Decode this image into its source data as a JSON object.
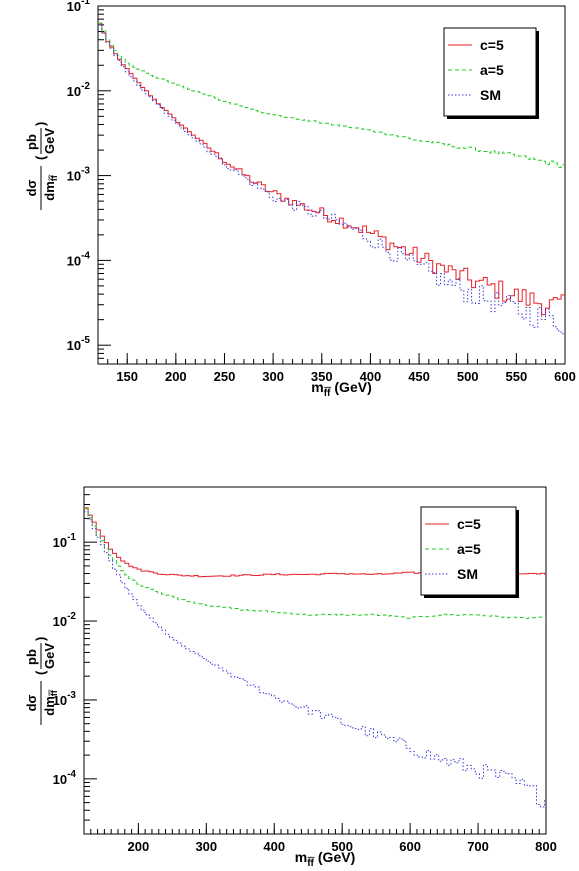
{
  "chart_data": [
    {
      "type": "line",
      "xlabel": "m_{f̃f̃} (GeV)",
      "xlabel_main": "m",
      "xlabel_sub": "f̃f̃",
      "xlabel_unit": "(GeV)",
      "ylabel": "dσ/dm_{f̃f̃} (pb/GeV)",
      "yscale": "log",
      "xlim": [
        120,
        600
      ],
      "ylim": [
        6e-06,
        0.1
      ],
      "xticks": [
        "150",
        "200",
        "250",
        "300",
        "350",
        "400",
        "450",
        "500",
        "550",
        "600"
      ],
      "yticks": [
        {
          "base": "10",
          "exp": "-1",
          "value": 0.1
        },
        {
          "base": "10",
          "exp": "-2",
          "value": 0.01
        },
        {
          "base": "10",
          "exp": "-3",
          "value": 0.001
        },
        {
          "base": "10",
          "exp": "-4",
          "value": 0.0001
        },
        {
          "base": "10",
          "exp": "-5",
          "value": 1e-05
        }
      ],
      "legend_position": "top-right",
      "series": [
        {
          "name": "c=5",
          "color": "#e8202a",
          "style": "solid",
          "x": [
            120,
            130,
            140,
            150,
            160,
            180,
            200,
            220,
            250,
            280,
            300,
            330,
            350,
            380,
            400,
            420,
            450,
            480,
            500,
            520,
            550,
            580,
            600
          ],
          "values": [
            0.07,
            0.038,
            0.025,
            0.018,
            0.013,
            0.0075,
            0.0045,
            0.0029,
            0.0015,
            0.00085,
            0.00062,
            0.00044,
            0.00036,
            0.00027,
            0.00021,
            0.00016,
            0.00011,
            7.5e-05,
            6e-05,
            5e-05,
            3.8e-05,
            3.1e-05,
            2.8e-05
          ]
        },
        {
          "name": "a=5",
          "color": "#22cc22",
          "style": "dashed",
          "x": [
            120,
            130,
            140,
            150,
            170,
            200,
            250,
            300,
            350,
            400,
            450,
            500,
            550,
            600
          ],
          "values": [
            0.07,
            0.04,
            0.028,
            0.021,
            0.016,
            0.012,
            0.0075,
            0.0052,
            0.0042,
            0.0034,
            0.0026,
            0.0021,
            0.0017,
            0.0013
          ]
        },
        {
          "name": "SM",
          "color": "#3a3ad8",
          "style": "dotted",
          "x": [
            120,
            130,
            140,
            150,
            160,
            180,
            200,
            220,
            250,
            280,
            300,
            330,
            350,
            380,
            400,
            420,
            450,
            480,
            500,
            520,
            550,
            580,
            600
          ],
          "values": [
            0.068,
            0.037,
            0.024,
            0.017,
            0.012,
            0.0072,
            0.0042,
            0.0027,
            0.0014,
            0.0008,
            0.00056,
            0.00041,
            0.00034,
            0.00024,
            0.00018,
            0.00013,
            8e-05,
            5.5e-05,
            4.2e-05,
            3.5e-05,
            2.6e-05,
            2.1e-05,
            1.8e-05
          ]
        }
      ]
    },
    {
      "type": "line",
      "xlabel": "m_{f̃f̃} (GeV)",
      "xlabel_main": "m",
      "xlabel_sub": "f̃f̃",
      "xlabel_unit": "(GeV)",
      "ylabel": "dσ/dm_{f̃f̃} (pb/GeV)",
      "yscale": "log",
      "xlim": [
        120,
        800
      ],
      "ylim": [
        2e-05,
        0.5
      ],
      "xticks": [
        "200",
        "300",
        "400",
        "500",
        "600",
        "700",
        "800"
      ],
      "yticks": [
        {
          "base": "10",
          "exp": "-1",
          "value": 0.1
        },
        {
          "base": "10",
          "exp": "-2",
          "value": 0.01
        },
        {
          "base": "10",
          "exp": "-3",
          "value": 0.001
        },
        {
          "base": "10",
          "exp": "-4",
          "value": 0.0001
        }
      ],
      "legend_position": "top-right",
      "series": [
        {
          "name": "c=5",
          "color": "#e8202a",
          "style": "solid",
          "x": [
            120,
            140,
            160,
            180,
            200,
            230,
            260,
            300,
            350,
            400,
            450,
            500,
            550,
            600,
            650,
            700,
            750,
            800
          ],
          "values": [
            0.3,
            0.15,
            0.08,
            0.055,
            0.045,
            0.04,
            0.038,
            0.037,
            0.038,
            0.039,
            0.039,
            0.04,
            0.039,
            0.041,
            0.04,
            0.04,
            0.039,
            0.04
          ]
        },
        {
          "name": "a=5",
          "color": "#22cc22",
          "style": "dashed",
          "x": [
            120,
            140,
            160,
            180,
            200,
            230,
            260,
            300,
            350,
            400,
            450,
            500,
            550,
            600,
            650,
            700,
            750,
            800
          ],
          "values": [
            0.3,
            0.13,
            0.065,
            0.04,
            0.03,
            0.023,
            0.019,
            0.016,
            0.014,
            0.013,
            0.012,
            0.012,
            0.012,
            0.011,
            0.012,
            0.012,
            0.011,
            0.011
          ]
        },
        {
          "name": "SM",
          "color": "#3a3ad8",
          "style": "dotted",
          "x": [
            120,
            140,
            160,
            180,
            200,
            230,
            260,
            300,
            350,
            400,
            450,
            500,
            550,
            600,
            650,
            700,
            750,
            800
          ],
          "values": [
            0.28,
            0.12,
            0.055,
            0.028,
            0.016,
            0.0085,
            0.0052,
            0.0032,
            0.0018,
            0.0011,
            0.00075,
            0.00052,
            0.00036,
            0.00025,
            0.00017,
            0.00013,
            9.5e-05,
            5.5e-05
          ]
        }
      ]
    }
  ]
}
